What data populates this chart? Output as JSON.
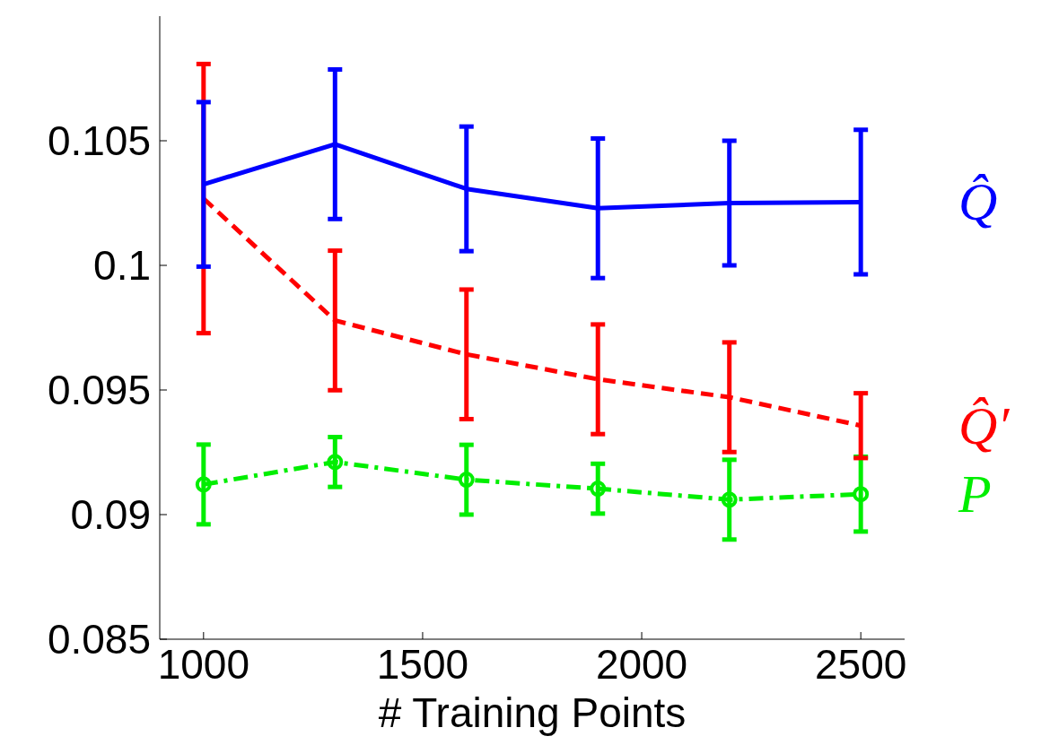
{
  "chart_data": {
    "type": "line",
    "xlabel": "# Training Points",
    "x": [
      1000,
      1300,
      1600,
      1900,
      2200,
      2500
    ],
    "xlim": [
      900,
      2600
    ],
    "xticks": [
      1000,
      1500,
      2000,
      2500
    ],
    "ylim": [
      0.085,
      0.11
    ],
    "yticks": [
      0.085,
      0.09,
      0.095,
      0.1,
      0.105
    ],
    "grid": false,
    "series": [
      {
        "name": "Q̂",
        "color": "#0000ff",
        "line_style": "solid",
        "marker": "none",
        "values": [
          0.10325,
          0.10486,
          0.10307,
          0.10229,
          0.1025,
          0.10254
        ],
        "errors": [
          0.0033,
          0.003,
          0.0025,
          0.0028,
          0.0025,
          0.0029
        ]
      },
      {
        "name": "Q̂′",
        "color": "#ff0000",
        "line_style": "dashed",
        "marker": "none",
        "values": [
          0.10268,
          0.09779,
          0.09643,
          0.09543,
          0.09471,
          0.09357
        ],
        "errors": [
          0.0054,
          0.0028,
          0.0026,
          0.0022,
          0.0022,
          0.0013
        ]
      },
      {
        "name": "P",
        "color": "#00ee00",
        "line_style": "dashdot",
        "marker": "circle",
        "values": [
          0.09121,
          0.09211,
          0.0914,
          0.09104,
          0.0906,
          0.09082
        ],
        "errors": [
          0.0016,
          0.001,
          0.0014,
          0.001,
          0.0016,
          0.0015
        ]
      }
    ]
  }
}
